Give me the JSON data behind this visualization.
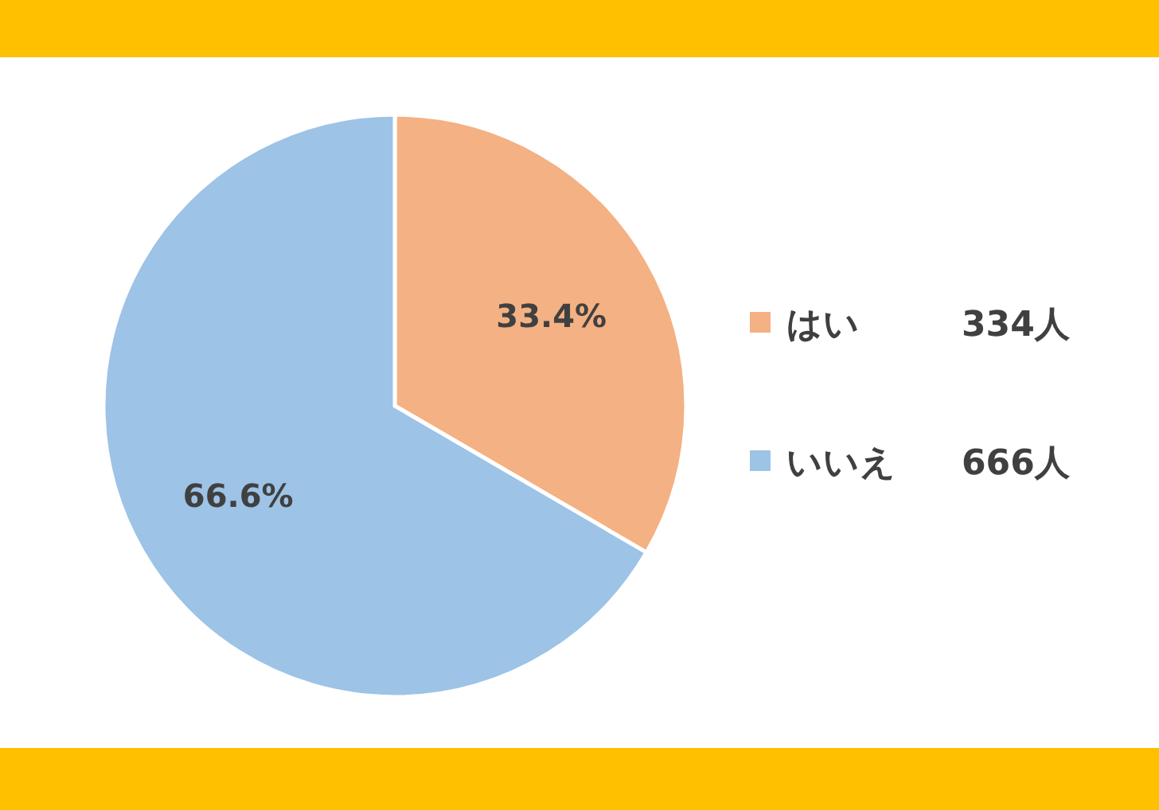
{
  "chart_data": {
    "type": "pie",
    "categories": [
      "はい",
      "いいえ"
    ],
    "values": [
      33.4,
      66.6
    ],
    "colors": [
      "#f4b183",
      "#9dc3e6"
    ],
    "value_labels": [
      "33.4%",
      "66.6%"
    ],
    "annotations": [
      "334人",
      "666人"
    ],
    "legend": "right"
  }
}
